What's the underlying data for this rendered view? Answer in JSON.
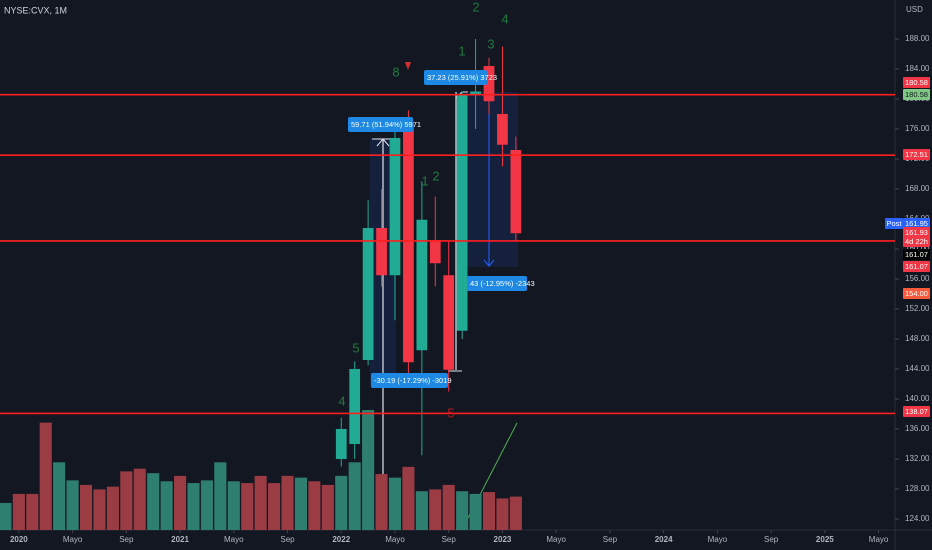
{
  "header": {
    "symbol": "NYSE:CVX, 1M",
    "currency": "USD"
  },
  "chart_data": {
    "type": "candlestick",
    "up_color": "#22ab94",
    "down_color": "#f23645",
    "x": [
      "2022-01",
      "2022-02",
      "2022-03",
      "2022-04",
      "2022-05",
      "2022-06",
      "2022-07",
      "2022-08",
      "2022-09",
      "2022-10",
      "2022-11",
      "2022-12",
      "2023-01",
      "2023-02"
    ],
    "open": [
      132,
      134,
      145.2,
      162.8,
      156.5,
      176.8,
      146.5,
      161.2,
      156.5,
      149.1,
      180.5,
      184.4,
      178,
      173.2
    ],
    "high": [
      137.5,
      145,
      166.5,
      168,
      177,
      178.5,
      169,
      167,
      161,
      181,
      188,
      185.5,
      187,
      175
    ],
    "low": [
      131,
      132,
      144.5,
      155,
      150.5,
      142,
      132.5,
      155,
      141,
      148,
      176,
      178,
      171,
      161
    ],
    "close": [
      136,
      144,
      162.8,
      156.5,
      174.8,
      144.9,
      163.9,
      158.1,
      143.9,
      180.5,
      181,
      179.7,
      173.9,
      162.1
    ],
    "volume": {
      "x": [
        "2019-12",
        "2020-01",
        "2020-02",
        "2020-03",
        "2020-04",
        "2020-05",
        "2020-06",
        "2020-07",
        "2020-08",
        "2020-09",
        "2020-10",
        "2020-11",
        "2020-12",
        "2021-01",
        "2021-02",
        "2021-03",
        "2021-04",
        "2021-05",
        "2021-06",
        "2021-07",
        "2021-08",
        "2021-09",
        "2021-10",
        "2021-11",
        "2021-12",
        "2022-01",
        "2022-02",
        "2022-03",
        "2022-04",
        "2022-05",
        "2022-06",
        "2022-07",
        "2022-08",
        "2022-09",
        "2022-10",
        "2022-11",
        "2022-12",
        "2023-01",
        "2023-02"
      ],
      "values": [
        30,
        40,
        40,
        119,
        75,
        55,
        50,
        45,
        48,
        65,
        68,
        63,
        54,
        60,
        52,
        55,
        75,
        54,
        52,
        60,
        52,
        60,
        58,
        54,
        50,
        60,
        75,
        133,
        62,
        58,
        70,
        43,
        45,
        50,
        43,
        40,
        42,
        35,
        37
      ],
      "colors": [
        "#2f7f71",
        "#9b3c45",
        "#9b3c45",
        "#9b3c45",
        "#2f7f71",
        "#2f7f71",
        "#9b3c45",
        "#9b3c45",
        "#9b3c45",
        "#9b3c45",
        "#9b3c45",
        "#2f7f71",
        "#2f7f71",
        "#9b3c45",
        "#2f7f71",
        "#2f7f71",
        "#2f7f71",
        "#2f7f71",
        "#9b3c45",
        "#9b3c45",
        "#9b3c45",
        "#9b3c45",
        "#2f7f71",
        "#9b3c45",
        "#9b3c45",
        "#2f7f71",
        "#2f7f71",
        "#2f7f71",
        "#9b3c45",
        "#2f7f71",
        "#9b3c45",
        "#2f7f71",
        "#9b3c45",
        "#9b3c45",
        "#2f7f71",
        "#2f7f71",
        "#9b3c45",
        "#9b3c45",
        "#9b3c45"
      ]
    },
    "xlim": [
      "2019-11",
      "2025-06"
    ],
    "xticks": [
      {
        "value": "2020-01",
        "label": "2020"
      },
      {
        "value": "2020-05",
        "label": "Mayo"
      },
      {
        "value": "2020-09",
        "label": "Sep"
      },
      {
        "value": "2021-01",
        "label": "2021"
      },
      {
        "value": "2021-05",
        "label": "Mayo"
      },
      {
        "value": "2021-09",
        "label": "Sep"
      },
      {
        "value": "2022-01",
        "label": "2022"
      },
      {
        "value": "2022-05",
        "label": "Mayo"
      },
      {
        "value": "2022-09",
        "label": "Sep"
      },
      {
        "value": "2023-01",
        "label": "2023"
      },
      {
        "value": "2023-05",
        "label": "Mayo"
      },
      {
        "value": "2023-09",
        "label": "Sep"
      },
      {
        "value": "2024-01",
        "label": "2024"
      },
      {
        "value": "2024-05",
        "label": "Mayo"
      },
      {
        "value": "2024-09",
        "label": "Sep"
      },
      {
        "value": "2025-01",
        "label": "2025"
      },
      {
        "value": "2025-05",
        "label": "Mayo"
      }
    ],
    "ylim": [
      122.53,
      193.2
    ],
    "yticks": [
      {
        "value": 124,
        "label": "124.00"
      },
      {
        "value": 128,
        "label": "128.00"
      },
      {
        "value": 132,
        "label": "132.00"
      },
      {
        "value": 136,
        "label": "136.00"
      },
      {
        "value": 140,
        "label": "140.00"
      },
      {
        "value": 144,
        "label": "144.00"
      },
      {
        "value": 148,
        "label": "148.00"
      },
      {
        "value": 152,
        "label": "152.00"
      },
      {
        "value": 156,
        "label": "156.00"
      },
      {
        "value": 160,
        "label": "160.00"
      },
      {
        "value": 164,
        "label": "164.00"
      },
      {
        "value": 168,
        "label": "168.00"
      },
      {
        "value": 172,
        "label": "172.00"
      },
      {
        "value": 176,
        "label": "176.00"
      },
      {
        "value": 180,
        "label": "180.00"
      },
      {
        "value": 184,
        "label": "184.00"
      },
      {
        "value": 188,
        "label": "188.00"
      }
    ],
    "grid": false,
    "levels": [
      {
        "value": 180.58,
        "color": "#ff1f1f"
      },
      {
        "value": 172.51,
        "color": "#ff1f1f"
      },
      {
        "value": 161.07,
        "color": "#ff1f1f"
      },
      {
        "value": 138.07,
        "color": "#ff1f1f"
      }
    ],
    "badges": [
      {
        "label": "180.58",
        "color": "#f23645",
        "text": "#ffffff"
      },
      {
        "label": "180.58",
        "color": "#81c784",
        "text": "#131722"
      },
      {
        "label": "172.51",
        "color": "#f23645",
        "text": "#ffffff"
      },
      {
        "label": "Post",
        "color": "#2962ff",
        "text": "#ffffff"
      },
      {
        "label": "161.95",
        "color": "#2962ff",
        "text": "#ffffff"
      },
      {
        "label": "161.93",
        "color": "#f23645",
        "text": "#ffffff"
      },
      {
        "label": "4d 22h",
        "color": "#f23645",
        "text": "#ffffff"
      },
      {
        "label": "161.07",
        "color": "#000000",
        "text": "#ffffff"
      },
      {
        "label": "161.07",
        "color": "#f23645",
        "text": "#ffffff"
      },
      {
        "label": "154.00",
        "color": "#ff5a3c",
        "text": "#ffffff"
      },
      {
        "label": "138.07",
        "color": "#f23645",
        "text": "#ffffff"
      }
    ],
    "annotations": [
      {
        "text": "2",
        "color": "#1f7a3e"
      },
      {
        "text": "4",
        "color": "#1f7a3e"
      },
      {
        "text": "3",
        "color": "#1f7a3e"
      },
      {
        "text": "1",
        "color": "#1f7a3e"
      },
      {
        "text": "8",
        "color": "#1f7a3e"
      },
      {
        "text": "1",
        "color": "#1f7a3e"
      },
      {
        "text": "2",
        "color": "#1f7a3e"
      },
      {
        "text": "5",
        "color": "#1f7a3e"
      },
      {
        "text": "4",
        "color": "#1f7a3e"
      },
      {
        "text": "5",
        "color": "#b71c1c"
      }
    ],
    "measures": [
      "59.71 (51.94%) 5971",
      "37.23 (25.91%) 3723",
      "-30.19 (-17.29%) -3019",
      "43 (-12.95%) -2343"
    ]
  }
}
